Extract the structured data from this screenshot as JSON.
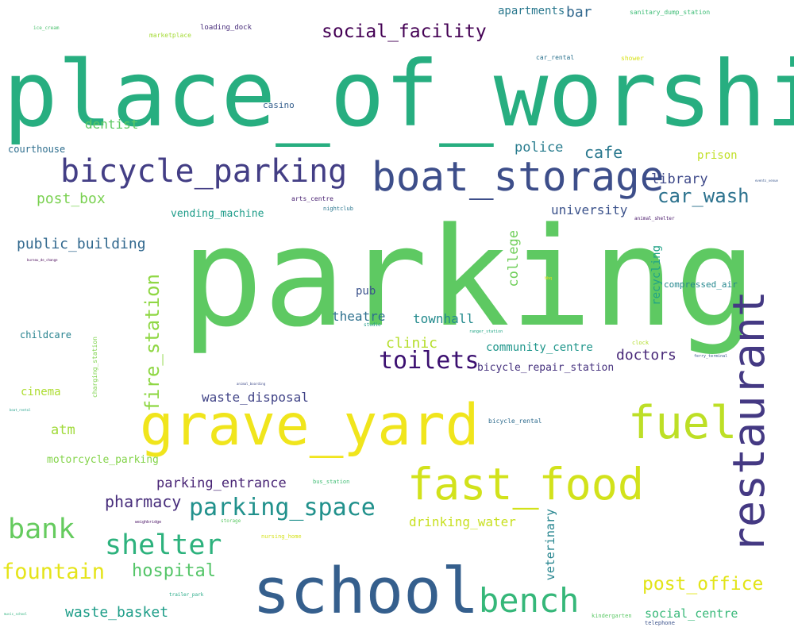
{
  "words": [
    {
      "text": "place_of_worship",
      "color": "#27ae80"
    },
    {
      "text": "parking",
      "color": "#5ec962"
    },
    {
      "text": "school",
      "color": "#355f8d"
    },
    {
      "text": "grave_yard",
      "color": "#f0e51c"
    },
    {
      "text": "restaurant",
      "color": "#443983"
    },
    {
      "text": "boat_storage",
      "color": "#3d4e8a"
    },
    {
      "text": "bicycle_parking",
      "color": "#433e85"
    },
    {
      "text": "fast_food",
      "color": "#d2e21b"
    },
    {
      "text": "fuel",
      "color": "#bddf26"
    },
    {
      "text": "bench",
      "color": "#35b779"
    },
    {
      "text": "shelter",
      "color": "#2db27d"
    },
    {
      "text": "bank",
      "color": "#65cb5e"
    },
    {
      "text": "parking_space",
      "color": "#21918c"
    },
    {
      "text": "toilets",
      "color": "#3b0f70"
    },
    {
      "text": "social_facility",
      "color": "#440154"
    },
    {
      "text": "fountain",
      "color": "#e5e419"
    },
    {
      "text": "hospital",
      "color": "#54c568"
    },
    {
      "text": "post_office",
      "color": "#e2e418"
    },
    {
      "text": "car_wash",
      "color": "#2c728e"
    },
    {
      "text": "fire_station",
      "color": "#8fd744"
    },
    {
      "text": "pharmacy",
      "color": "#472d7b"
    },
    {
      "text": "waste_basket",
      "color": "#1f9e89"
    },
    {
      "text": "public_building",
      "color": "#31688e"
    },
    {
      "text": "post_box",
      "color": "#7ad151"
    },
    {
      "text": "cafe",
      "color": "#2a788e"
    },
    {
      "text": "police",
      "color": "#287c8e"
    },
    {
      "text": "library",
      "color": "#3e4989"
    },
    {
      "text": "college",
      "color": "#6ece58"
    },
    {
      "text": "university",
      "color": "#3b528b"
    },
    {
      "text": "doctors",
      "color": "#482878"
    },
    {
      "text": "clinic",
      "color": "#b5de2b"
    },
    {
      "text": "townhall",
      "color": "#238a8d"
    },
    {
      "text": "theatre",
      "color": "#2d708e"
    },
    {
      "text": "drinking_water",
      "color": "#c8e020"
    },
    {
      "text": "veterinary",
      "color": "#25848e"
    },
    {
      "text": "waste_disposal",
      "color": "#414487"
    },
    {
      "text": "parking_entrance",
      "color": "#482475"
    },
    {
      "text": "recycling",
      "color": "#20a386"
    },
    {
      "text": "community_centre",
      "color": "#1f968b"
    },
    {
      "text": "bicycle_repair_station",
      "color": "#46327e"
    },
    {
      "text": "dentist",
      "color": "#5ec962"
    },
    {
      "text": "atm",
      "color": "#a0da39"
    },
    {
      "text": "social_centre",
      "color": "#37b878"
    },
    {
      "text": "cinema",
      "color": "#addc30"
    },
    {
      "text": "pub",
      "color": "#3b528b"
    },
    {
      "text": "motorcycle_parking",
      "color": "#84d44b"
    },
    {
      "text": "vending_machine",
      "color": "#1e9c89"
    },
    {
      "text": "bar",
      "color": "#31688e"
    },
    {
      "text": "apartments",
      "color": "#2a788e"
    },
    {
      "text": "prison",
      "color": "#c0df25"
    },
    {
      "text": "childcare",
      "color": "#26828e"
    },
    {
      "text": "courthouse",
      "color": "#2e6e8e"
    },
    {
      "text": "compressed_air",
      "color": "#24878e"
    },
    {
      "text": "casino",
      "color": "#355f8d"
    },
    {
      "text": "charging_station",
      "color": "#7fd34e"
    },
    {
      "text": "loading_dock",
      "color": "#472c7a"
    },
    {
      "text": "marketplace",
      "color": "#a5db36"
    },
    {
      "text": "ice_cream",
      "color": "#4ac16d"
    },
    {
      "text": "sanitary_dump_station",
      "color": "#3cbc75"
    },
    {
      "text": "car_rental",
      "color": "#2c728e"
    },
    {
      "text": "shower",
      "color": "#d8e219"
    },
    {
      "text": "arts_centre",
      "color": "#482071"
    },
    {
      "text": "nightclub",
      "color": "#2a768e"
    },
    {
      "text": "animal_shelter",
      "color": "#481769"
    },
    {
      "text": "bicycle_rental",
      "color": "#2f6c8e"
    },
    {
      "text": "bus_station",
      "color": "#3fbc73"
    },
    {
      "text": "nursing_home",
      "color": "#d5e21a"
    },
    {
      "text": "storage",
      "color": "#5ac864"
    },
    {
      "text": "trailer_park",
      "color": "#22a884"
    },
    {
      "text": "kindergarten",
      "color": "#5ac864"
    },
    {
      "text": "telephone",
      "color": "#3b528b"
    },
    {
      "text": "clock",
      "color": "#b2dd2d"
    },
    {
      "text": "studio",
      "color": "#1f9a8a"
    },
    {
      "text": "ranger_station",
      "color": "#21a585"
    },
    {
      "text": "ferry_terminal",
      "color": "#38598c"
    },
    {
      "text": "bbq",
      "color": "#e7e419"
    },
    {
      "text": "music_school",
      "color": "#2db27d"
    },
    {
      "text": "bureau_de_change",
      "color": "#440154"
    },
    {
      "text": "boat_rental",
      "color": "#1f9e89"
    },
    {
      "text": "animal_boarding",
      "color": "#3e4a89"
    },
    {
      "text": "weighbridge",
      "color": "#471063"
    },
    {
      "text": "events_venue",
      "color": "#39568c"
    }
  ]
}
